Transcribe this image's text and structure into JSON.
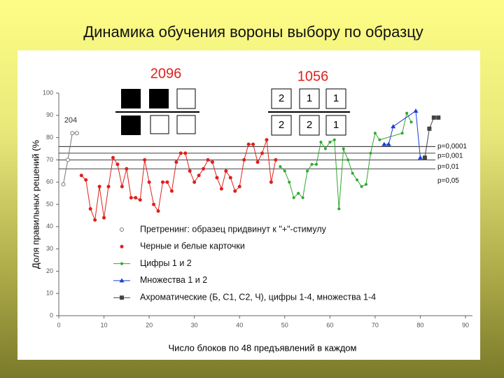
{
  "chart_data": {
    "type": "line",
    "title": "Динамика обучения вороны выбору по образцу",
    "xlabel": "Число блоков по 48 предъявлений в каждом",
    "ylabel": "Доля правильных решений (%",
    "xlim": [
      0,
      90
    ],
    "xticks": [
      0,
      10,
      20,
      30,
      40,
      50,
      60,
      70,
      80,
      90
    ],
    "ylim": [
      0,
      100
    ],
    "yticks": [
      0,
      10,
      20,
      30,
      40,
      50,
      60,
      70,
      80,
      90,
      100
    ],
    "annotations": [
      "2096",
      "1056",
      "204"
    ],
    "card_digits": [
      [
        "2",
        "1",
        "1"
      ],
      [
        "2",
        "2",
        "1"
      ]
    ],
    "reference_lines": [
      {
        "value": 76,
        "label": "p=0,0001"
      },
      {
        "value": 73,
        "label": "p=0,001"
      },
      {
        "value": 70,
        "label": "p=0,01"
      },
      {
        "value": 66,
        "label": "p=0,05"
      }
    ],
    "series": [
      {
        "name": "Претренинг: образец придвинут к \"+\"-стимулу",
        "color": "#777777",
        "marker": "circle-open",
        "x": [
          1,
          2,
          3,
          4
        ],
        "values": [
          59,
          70,
          82,
          82
        ]
      },
      {
        "name": "Черные и белые карточки",
        "color": "#e0201c",
        "marker": "circle",
        "x": [
          5,
          6,
          7,
          8,
          9,
          10,
          11,
          12,
          13,
          14,
          15,
          16,
          17,
          18,
          19,
          20,
          21,
          22,
          23,
          24,
          25,
          26,
          27,
          28,
          29,
          30,
          31,
          32,
          33,
          34,
          35,
          36,
          37,
          38,
          39,
          40,
          41,
          42,
          43,
          44,
          45,
          46,
          47,
          48
        ],
        "values": [
          63,
          61,
          48,
          43,
          58,
          44,
          58,
          71,
          68,
          58,
          66,
          53,
          53,
          52,
          70,
          60,
          50,
          47,
          60,
          60,
          56,
          69,
          73,
          73,
          65,
          60,
          63,
          66,
          70,
          69,
          62,
          57,
          65,
          62,
          56,
          58,
          70,
          77,
          77,
          69,
          73,
          79,
          60,
          70
        ]
      },
      {
        "name": "Цифры 1 и 2",
        "color": "#2ea82e",
        "marker": "dot",
        "x": [
          49,
          50,
          51,
          52,
          53,
          54,
          55,
          56,
          57,
          58,
          59,
          60,
          61,
          62,
          63,
          64,
          65,
          66,
          67,
          68,
          69,
          70,
          71,
          76,
          77,
          78
        ],
        "values": [
          67,
          65,
          60,
          53,
          55,
          53,
          65,
          68,
          68,
          78,
          75,
          78,
          79,
          48,
          75,
          70,
          64,
          61,
          58,
          59,
          73,
          82,
          79,
          82,
          91,
          87
        ]
      },
      {
        "name": "Множества 1 и 2",
        "color": "#1a3fd6",
        "marker": "triangle",
        "x": [
          72,
          73,
          74,
          79,
          80
        ],
        "values": [
          77,
          77,
          85,
          92,
          71
        ]
      },
      {
        "name": "Ахроматические (Б, С1, С2, Ч), цифры 1-4, множества 1-4",
        "color": "#444444",
        "marker": "square",
        "x": [
          81,
          82,
          83,
          84
        ],
        "values": [
          71,
          84,
          89,
          89
        ]
      }
    ]
  }
}
